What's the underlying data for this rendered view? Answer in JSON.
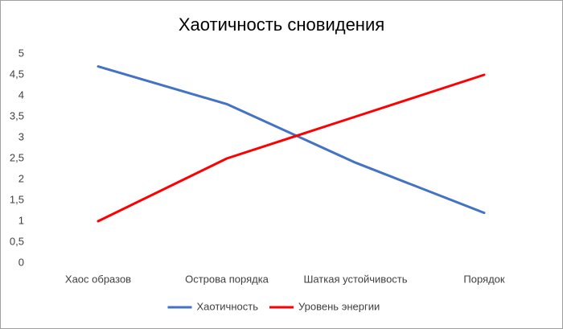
{
  "chart_data": {
    "type": "line",
    "title": "Хаотичность сновидения",
    "categories": [
      "Хаос образов",
      "Острова порядка",
      "Шаткая устойчивость",
      "Порядок"
    ],
    "series": [
      {
        "name": "Хаотичность",
        "color": "#4472c4",
        "values": [
          4.7,
          3.8,
          2.4,
          1.2
        ]
      },
      {
        "name": "Уровень энергии",
        "color": "#ff0000",
        "values": [
          1,
          2.5,
          3.5,
          4.5
        ]
      }
    ],
    "ylim": [
      0,
      5
    ],
    "yticks": [
      0,
      {
        "value": 0.5,
        "label": "0,5"
      },
      1,
      {
        "value": 1.5,
        "label": "1,5"
      },
      2,
      {
        "value": 2.5,
        "label": "2,5"
      },
      3,
      {
        "value": 3.5,
        "label": "3,5"
      },
      4,
      {
        "value": 4.5,
        "label": "4,5"
      },
      5
    ],
    "grid": false,
    "legend": "bottom"
  }
}
